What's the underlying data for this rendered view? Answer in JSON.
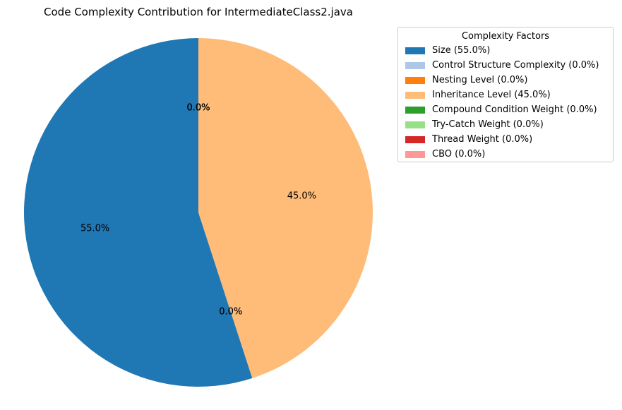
{
  "chart_data": {
    "type": "pie",
    "title": "Code Complexity Contribution for IntermediateClass2.java",
    "legend_title": "Complexity Factors",
    "legend_position": "upper-right-outside",
    "start_angle_deg": 90,
    "direction": "counterclockwise",
    "slices": [
      {
        "label": "Size",
        "value": 55.0,
        "pct_label": "55.0%",
        "legend": "Size (55.0%)",
        "color": "#1f77b4"
      },
      {
        "label": "Control Structure Complexity",
        "value": 0.0,
        "pct_label": "0.0%",
        "legend": "Control Structure Complexity (0.0%)",
        "color": "#aec7e8"
      },
      {
        "label": "Nesting Level",
        "value": 0.0,
        "pct_label": "0.0%",
        "legend": "Nesting Level (0.0%)",
        "color": "#ff7f0e"
      },
      {
        "label": "Inheritance Level",
        "value": 45.0,
        "pct_label": "45.0%",
        "legend": "Inheritance Level (45.0%)",
        "color": "#ffbb78"
      },
      {
        "label": "Compound Condition Weight",
        "value": 0.0,
        "pct_label": "0.0%",
        "legend": "Compound Condition Weight (0.0%)",
        "color": "#2ca02c"
      },
      {
        "label": "Try-Catch Weight",
        "value": 0.0,
        "pct_label": "0.0%",
        "legend": "Try-Catch Weight (0.0%)",
        "color": "#98df8a"
      },
      {
        "label": "Thread Weight",
        "value": 0.0,
        "pct_label": "0.0%",
        "legend": "Thread Weight (0.0%)",
        "color": "#d62728"
      },
      {
        "label": "CBO",
        "value": 0.0,
        "pct_label": "0.0%",
        "legend": "CBO (0.0%)",
        "color": "#ff9896"
      }
    ]
  }
}
